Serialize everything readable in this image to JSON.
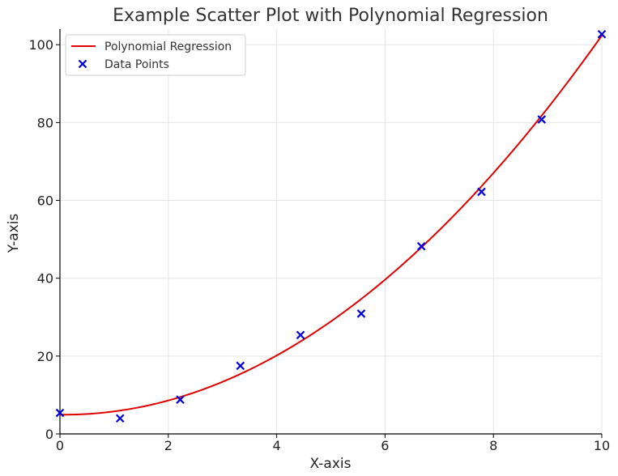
{
  "chart_data": {
    "type": "scatter",
    "title": "Example Scatter Plot with Polynomial Regression",
    "xlabel": "X-axis",
    "ylabel": "Y-axis",
    "xlim": [
      0,
      10
    ],
    "ylim": [
      0,
      104
    ],
    "x_ticks": [
      0,
      2,
      4,
      6,
      8,
      10
    ],
    "y_ticks": [
      0,
      20,
      40,
      60,
      80,
      100
    ],
    "grid": true,
    "legend_position": "top-left",
    "series": [
      {
        "name": "Polynomial Regression",
        "kind": "line",
        "color": "#e00000",
        "polynomial_coefficients": [
          4.95,
          -0.16,
          0.99
        ],
        "domain": [
          0,
          10
        ]
      },
      {
        "name": "Data Points",
        "kind": "scatter",
        "marker": "x",
        "color": "#0000dd",
        "x": [
          0,
          1.11,
          2.22,
          3.33,
          4.44,
          5.56,
          6.67,
          7.78,
          8.89,
          10
        ],
        "y": [
          5.4,
          4.0,
          8.8,
          17.5,
          25.4,
          30.9,
          48.2,
          62.2,
          80.8,
          102.7
        ]
      }
    ]
  }
}
